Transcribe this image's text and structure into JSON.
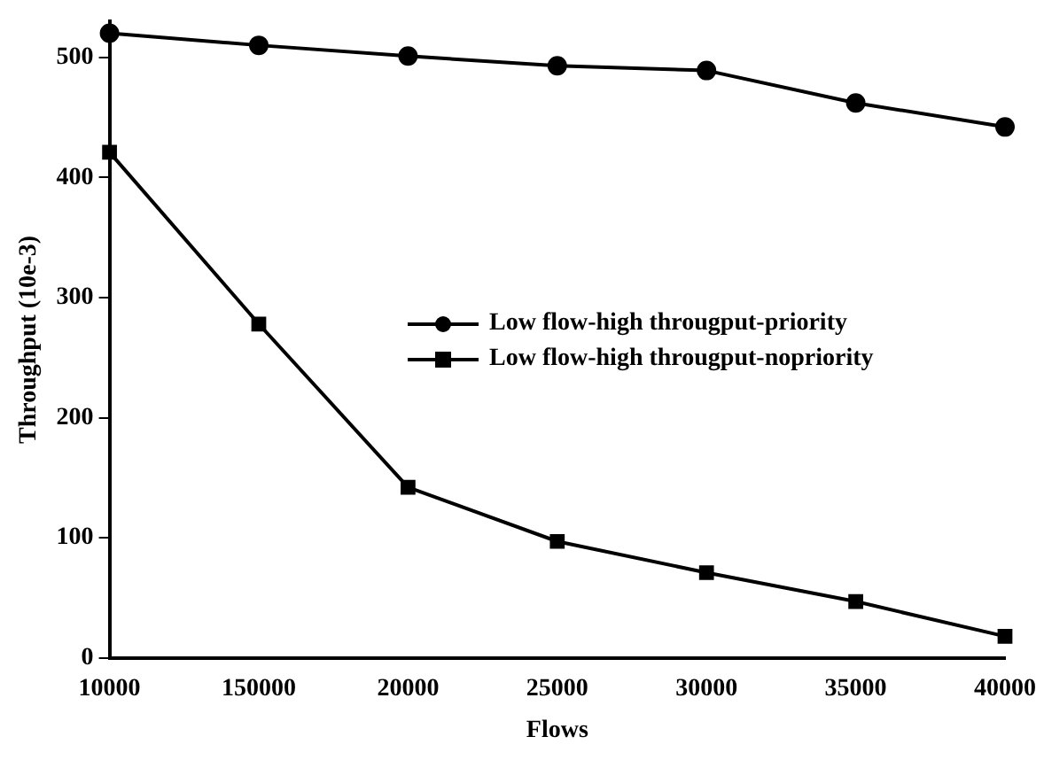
{
  "chart_data": {
    "type": "line",
    "xlabel": "Flows",
    "ylabel": "Throughput (10e-3)",
    "categories": [
      "10000",
      "150000",
      "20000",
      "25000",
      "30000",
      "35000",
      "40000"
    ],
    "ylim": [
      0,
      530
    ],
    "yticks": [
      0,
      100,
      200,
      300,
      400,
      500
    ],
    "grid": false,
    "legend": "right",
    "line_style": "solid",
    "series": [
      {
        "name": "Low flow-high througput-priority",
        "color": "#000000",
        "marker": "circle",
        "values": [
          520,
          510,
          501,
          493,
          489,
          462,
          442
        ]
      },
      {
        "name": "Low flow-high througput-nopriority",
        "color": "#000000",
        "marker": "square",
        "values": [
          421,
          278,
          142,
          97,
          71,
          47,
          18
        ]
      }
    ]
  }
}
